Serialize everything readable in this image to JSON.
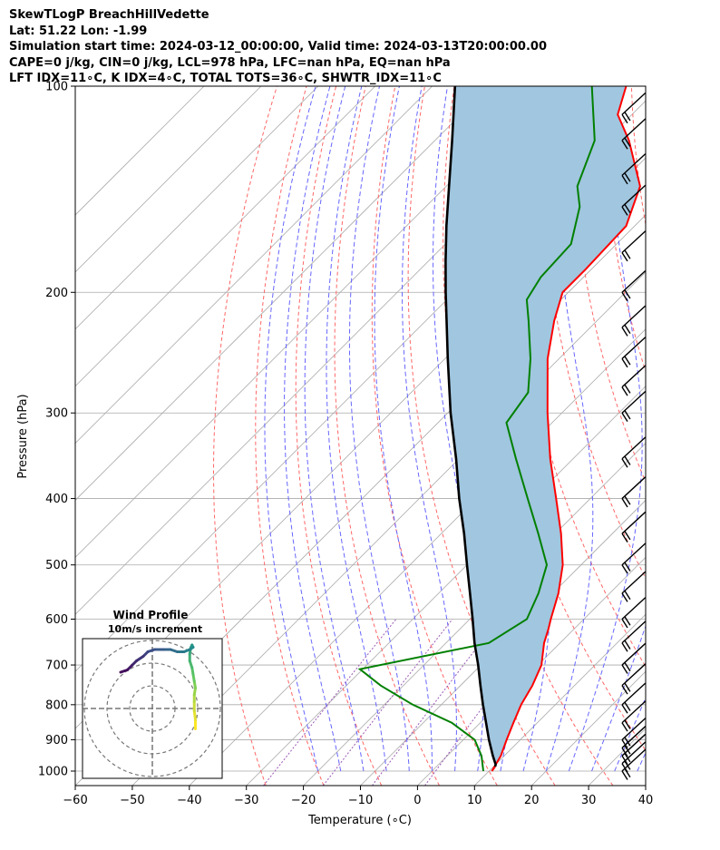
{
  "header": {
    "line1": "SkewTLogP BreachHillVedette",
    "line2": "Lat: 51.22   Lon: -1.99",
    "line3": "Simulation start time: 2024-03-12_00:00:00, Valid time: 2024-03-13T20:00:00.00",
    "line4": "CAPE=0 j/kg, CIN=0 j/kg, LCL=978 hPa, LFC=nan hPa, EQ=nan hPa",
    "line5": "LFT IDX=11∘C, K IDX=4∘C, TOTAL TOTS=36∘C, SHWTR_IDX=11∘C"
  },
  "colors": {
    "temperature": "#ff0000",
    "dewpoint": "#008000",
    "parcel": "#000000",
    "fill": "#a1c6df",
    "dry_adiabat": "#ff6666",
    "moist_adiabat": "#6666ff",
    "mixing_ratio": "#9b59b6",
    "isotherm": "#aaaaaa"
  },
  "chart_data": {
    "type": "skew-t",
    "xlabel": "Temperature (∘C)",
    "ylabel": "Pressure (hPa)",
    "xlim": [
      -60,
      40
    ],
    "ylim": [
      1050,
      100
    ],
    "x_ticks": [
      -60,
      -50,
      -40,
      -30,
      -20,
      -10,
      0,
      10,
      20,
      30,
      40
    ],
    "x_tick_labels": [
      "−60",
      "−50",
      "−40",
      "−30",
      "−20",
      "−10",
      "0",
      "10",
      "20",
      "30",
      "40"
    ],
    "y_ticks": [
      1000,
      900,
      800,
      700,
      600,
      500,
      400,
      300,
      200,
      100
    ],
    "y_tick_labels": [
      "1000",
      "900",
      "800",
      "700",
      "600",
      "500",
      "400",
      "300",
      "200",
      "100"
    ],
    "skew_deg": 45,
    "series": [
      {
        "name": "Temperature",
        "pressure": [
          985,
          1000,
          950,
          900,
          850,
          800,
          750,
          700,
          650,
          620,
          600,
          550,
          500,
          450,
          400,
          350,
          300,
          250,
          220,
          200,
          185,
          160,
          140,
          120,
          110,
          100
        ],
        "values": [
          10.3,
          10.5,
          9.4,
          7.6,
          5.8,
          4.0,
          2.6,
          0.6,
          -2.8,
          -4.5,
          -5.8,
          -9.0,
          -13.2,
          -19.0,
          -26.0,
          -34.0,
          -42.5,
          -52.0,
          -57.5,
          -61.0,
          -61.0,
          -61.5,
          -66.0,
          -76.0,
          -82.5,
          -86.0
        ]
      },
      {
        "name": "Dewpoint",
        "pressure": [
          1000,
          950,
          900,
          850,
          800,
          750,
          710,
          650,
          600,
          550,
          500,
          450,
          400,
          350,
          310,
          280,
          250,
          220,
          205,
          190,
          170,
          150,
          140,
          120,
          100
        ],
        "values": [
          9.0,
          6.0,
          2.0,
          -5.0,
          -15.0,
          -24.0,
          -30.5,
          -12.5,
          -10.0,
          -12.5,
          -16.0,
          -23.0,
          -31.0,
          -40.0,
          -48.0,
          -49.5,
          -55.0,
          -62.0,
          -66.0,
          -67.5,
          -68.0,
          -73.0,
          -77.0,
          -82.0,
          -92.0
        ]
      },
      {
        "name": "Parcel",
        "pressure": [
          985,
          978,
          950,
          900,
          850,
          800,
          750,
          700,
          650,
          600,
          550,
          500,
          450,
          400,
          350,
          300,
          250,
          200,
          180,
          160,
          140,
          120,
          100
        ],
        "values": [
          10.3,
          10.0,
          8.0,
          4.5,
          1.0,
          -2.7,
          -6.5,
          -10.5,
          -15.0,
          -19.5,
          -24.5,
          -30.0,
          -36.0,
          -43.0,
          -50.5,
          -59.5,
          -69.5,
          -81.5,
          -87.0,
          -93.0,
          -99.5,
          -107.0,
          -116.0
        ]
      }
    ],
    "wind_barbs_pressure": [
      1000,
      975,
      950,
      925,
      900,
      850,
      800,
      750,
      700,
      650,
      600,
      550,
      500,
      450,
      400,
      350,
      300,
      275,
      250,
      225,
      200,
      175,
      150,
      135,
      120,
      110
    ],
    "hodograph": {
      "title": "Wind Profile",
      "subtitle": "10m/s increment",
      "rings_ms": [
        10,
        20,
        30
      ],
      "u": [
        19,
        19,
        18.5,
        18.5,
        18.5,
        19,
        18.5,
        18,
        17.5,
        16.5,
        16.5,
        17,
        17.5,
        18,
        16.5,
        14,
        11,
        8,
        5,
        1,
        -2,
        -4,
        -7,
        -9,
        -11,
        -14
      ],
      "v": [
        -9,
        -5,
        -1,
        3,
        6,
        9,
        12,
        15,
        18,
        21,
        24,
        27,
        28,
        27,
        26,
        25,
        25,
        26,
        26,
        26,
        25,
        23,
        21,
        19,
        17,
        16
      ]
    }
  }
}
